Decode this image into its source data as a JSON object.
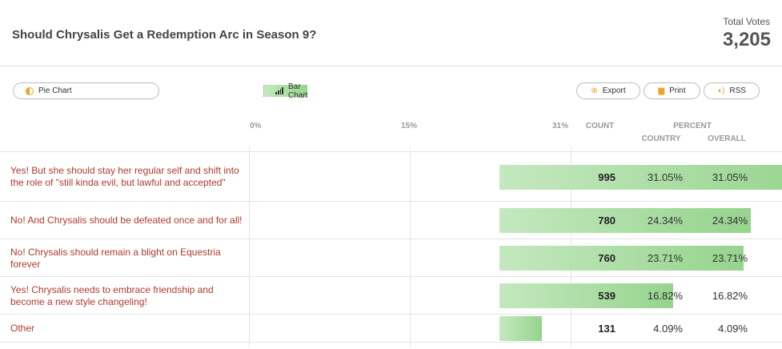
{
  "poll": {
    "title": "Should Chrysalis Get a Redemption Arc in Season 9?",
    "total_label": "Total Votes",
    "total_value": "3,205"
  },
  "toolbar": {
    "pie_label": "Pie Chart",
    "bar_label": "Bar Chart",
    "export_label": "Export",
    "print_label": "Print",
    "rss_label": "RSS"
  },
  "columns": {
    "axis_ticks": [
      "0%",
      "15%",
      "31%"
    ],
    "count": "COUNT",
    "percent": "PERCENT",
    "country": "COUNTRY",
    "overall": "OVERALL"
  },
  "chart_data": {
    "type": "bar",
    "orientation": "horizontal",
    "xlim": [
      0,
      31.05
    ],
    "categories": [
      "Yes! But she should stay her regular self and shift into the role of \"still kinda evil, but lawful and accepted\"",
      "No! And Chrysalis should be defeated once and for all!",
      "No! Chrysalis should remain a blight on Equestria forever",
      "Yes! Chrysalis needs to embrace friendship and become a new style changeling!",
      "Other"
    ],
    "values": [
      31.05,
      24.34,
      23.71,
      16.82,
      4.09
    ],
    "rows": [
      {
        "label": "Yes! But she should stay her regular self and shift into the role of \"still kinda evil, but lawful and accepted\"",
        "count": "995",
        "country": "31.05%",
        "overall": "31.05%",
        "pct": 31.05
      },
      {
        "label": "No! And Chrysalis should be defeated once and for all!",
        "count": "780",
        "country": "24.34%",
        "overall": "24.34%",
        "pct": 24.34
      },
      {
        "label": "No! Chrysalis should remain a blight on Equestria forever",
        "count": "760",
        "country": "23.71%",
        "overall": "23.71%",
        "pct": 23.71
      },
      {
        "label": "Yes! Chrysalis needs to embrace friendship and become a new style changeling!",
        "count": "539",
        "country": "16.82%",
        "overall": "16.82%",
        "pct": 16.82
      },
      {
        "label": "Other",
        "count": "131",
        "country": "4.09%",
        "overall": "4.09%",
        "pct": 4.09
      }
    ]
  }
}
